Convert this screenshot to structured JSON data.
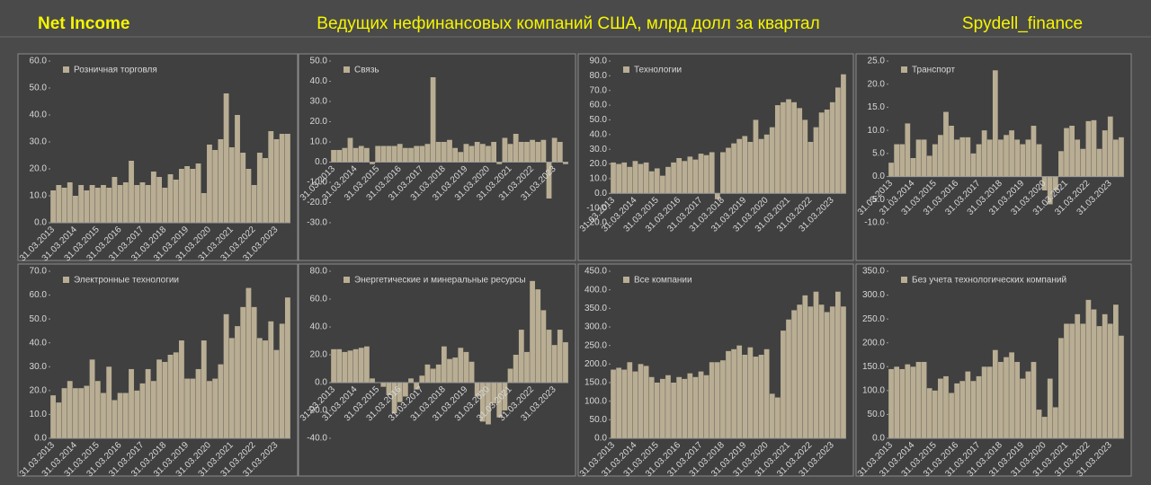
{
  "header": {
    "left": "Net Income",
    "center": "Ведущих нефинансовых компаний США, млрд долл за квартал",
    "right": "Spydell_finance"
  },
  "chart_data": [
    {
      "type": "bar",
      "title": "Розничная торговля",
      "color": "#b9ae94",
      "categories": [
        "31.03.2013",
        null,
        null,
        null,
        "31.03.2014",
        null,
        null,
        null,
        "31.03.2015",
        null,
        null,
        null,
        "31.03.2016",
        null,
        null,
        null,
        "31.03.2017",
        null,
        null,
        null,
        "31.03.2018",
        null,
        null,
        null,
        "31.03.2019",
        null,
        null,
        null,
        "31.03.2020",
        null,
        null,
        null,
        "31.03.2021",
        null,
        null,
        null,
        "31.03.2022",
        null,
        null,
        null,
        "31.03.2023",
        null,
        null
      ],
      "values": [
        12,
        14,
        13,
        15,
        10,
        14,
        12,
        14,
        13,
        14,
        13,
        17,
        14,
        15,
        23,
        14,
        15,
        14,
        19,
        17,
        13,
        18,
        16,
        20,
        21,
        20,
        22,
        11,
        29,
        27,
        31,
        48,
        28,
        40,
        26,
        20,
        14,
        26,
        24,
        34,
        31,
        33,
        33
      ],
      "ylim": [
        0,
        60
      ],
      "yticks": [
        {
          "value": 0,
          "label": "0.0"
        },
        {
          "value": 10,
          "label": "10.0"
        },
        {
          "value": 20,
          "label": "20.0"
        },
        {
          "value": 30,
          "label": "30.0"
        },
        {
          "value": 40,
          "label": "40.0"
        },
        {
          "value": 50,
          "label": "50.0"
        },
        {
          "value": 60,
          "label": "60.0"
        }
      ]
    },
    {
      "type": "bar",
      "title": "Связь",
      "color": "#b9ae94",
      "categories": [
        "31.03.2013",
        null,
        null,
        null,
        "31.03.2014",
        null,
        null,
        null,
        "31.03.2015",
        null,
        null,
        null,
        "31.03.2016",
        null,
        null,
        null,
        "31.03.2017",
        null,
        null,
        null,
        "31.03.2018",
        null,
        null,
        null,
        "31.03.2019",
        null,
        null,
        null,
        "31.03.2020",
        null,
        null,
        null,
        "31.03.2021",
        null,
        null,
        null,
        "31.03.2022",
        null,
        null,
        null,
        "31.03.2023",
        null,
        null
      ],
      "values": [
        6,
        6,
        7,
        12,
        7,
        8,
        7,
        -1,
        8,
        8,
        8,
        8,
        9,
        7,
        7,
        8,
        8,
        9,
        42,
        10,
        10,
        11,
        7,
        5,
        9,
        8,
        10,
        9,
        8,
        10,
        -1,
        12,
        9,
        14,
        10,
        10,
        11,
        10,
        11,
        -18,
        12,
        10,
        -1
      ],
      "ylim": [
        -30,
        50
      ],
      "yticks": [
        {
          "value": -30,
          "label": "-30.0"
        },
        {
          "value": -20,
          "label": "-20.0"
        },
        {
          "value": -10,
          "label": "-10.0"
        },
        {
          "value": 0,
          "label": "0.0"
        },
        {
          "value": 10,
          "label": "10.0"
        },
        {
          "value": 20,
          "label": "20.0"
        },
        {
          "value": 30,
          "label": "30.0"
        },
        {
          "value": 40,
          "label": "40.0"
        },
        {
          "value": 50,
          "label": "50.0"
        }
      ]
    },
    {
      "type": "bar",
      "title": "Технологии",
      "color": "#b9ae94",
      "categories": [
        "31.03.2013",
        null,
        null,
        null,
        "31.03.2014",
        null,
        null,
        null,
        "31.03.2015",
        null,
        null,
        null,
        "31.03.2016",
        null,
        null,
        null,
        "31.03.2017",
        null,
        null,
        null,
        "31.03.2018",
        null,
        null,
        null,
        "31.03.2019",
        null,
        null,
        null,
        "31.03.2020",
        null,
        null,
        null,
        "31.03.2021",
        null,
        null,
        null,
        "31.03.2022",
        null,
        null,
        null,
        "31.03.2023",
        null,
        null
      ],
      "values": [
        21,
        20,
        21,
        18,
        22,
        20,
        21,
        15,
        17,
        12,
        18,
        21,
        24,
        22,
        25,
        23,
        27,
        26,
        28,
        -4,
        28,
        31,
        34,
        37,
        39,
        35,
        50,
        37,
        40,
        45,
        60,
        62,
        64,
        62,
        58,
        50,
        35,
        45,
        55,
        57,
        62,
        72,
        81
      ],
      "ylim": [
        -20,
        90
      ],
      "yticks": [
        {
          "value": -20,
          "label": "-20.0"
        },
        {
          "value": -10,
          "label": "-10.0"
        },
        {
          "value": 0,
          "label": "0.0"
        },
        {
          "value": 10,
          "label": "10.0"
        },
        {
          "value": 20,
          "label": "20.0"
        },
        {
          "value": 30,
          "label": "30.0"
        },
        {
          "value": 40,
          "label": "40.0"
        },
        {
          "value": 50,
          "label": "50.0"
        },
        {
          "value": 60,
          "label": "60.0"
        },
        {
          "value": 70,
          "label": "70.0"
        },
        {
          "value": 80,
          "label": "80.0"
        },
        {
          "value": 90,
          "label": "90.0"
        }
      ]
    },
    {
      "type": "bar",
      "title": "Транспорт",
      "color": "#b9ae94",
      "categories": [
        "31.03.2013",
        null,
        null,
        null,
        "31.03.2014",
        null,
        null,
        null,
        "31.03.2015",
        null,
        null,
        null,
        "31.03.2016",
        null,
        null,
        null,
        "31.03.2017",
        null,
        null,
        null,
        "31.03.2018",
        null,
        null,
        null,
        "31.03.2019",
        null,
        null,
        null,
        "31.03.2020",
        null,
        null,
        null,
        "31.03.2021",
        null,
        null,
        null,
        "31.03.2022",
        null,
        null,
        null,
        "31.03.2023",
        null,
        null
      ],
      "values": [
        3,
        7,
        7,
        11.5,
        4,
        8,
        8,
        4.5,
        7,
        9,
        14,
        11,
        8,
        8.5,
        8.5,
        5,
        7,
        10,
        8,
        23,
        8,
        9,
        10,
        8,
        7,
        8,
        11,
        7,
        -3,
        -6,
        -3,
        5.5,
        10.5,
        11,
        8,
        6,
        12,
        12.2,
        6,
        10,
        13,
        8,
        8.5
      ],
      "ylim": [
        -10,
        25
      ],
      "yticks": [
        {
          "value": -10,
          "label": "-10.0"
        },
        {
          "value": -5,
          "label": "-5.0"
        },
        {
          "value": 0,
          "label": "0.0"
        },
        {
          "value": 5,
          "label": "5.0"
        },
        {
          "value": 10,
          "label": "10.0"
        },
        {
          "value": 15,
          "label": "15.0"
        },
        {
          "value": 20,
          "label": "20.0"
        },
        {
          "value": 25,
          "label": "25.0"
        }
      ]
    },
    {
      "type": "bar",
      "title": "Электронные технологии",
      "color": "#b9ae94",
      "categories": [
        "31.03.2013",
        null,
        null,
        null,
        "31.03.2014",
        null,
        null,
        null,
        "31.03.2015",
        null,
        null,
        null,
        "31.03.2016",
        null,
        null,
        null,
        "31.03.2017",
        null,
        null,
        null,
        "31.03.2018",
        null,
        null,
        null,
        "31.03.2019",
        null,
        null,
        null,
        "31.03.2020",
        null,
        null,
        null,
        "31.03.2021",
        null,
        null,
        null,
        "31.03.2022",
        null,
        null,
        null,
        "31.03.2023",
        null,
        null
      ],
      "values": [
        18,
        15,
        21,
        24,
        21,
        21,
        22,
        33,
        24,
        19,
        30,
        16,
        19,
        19,
        29,
        20,
        23,
        29,
        24,
        33,
        32,
        35,
        36,
        41,
        25,
        25,
        29,
        41,
        24,
        25,
        31,
        52,
        42,
        47,
        55,
        63,
        55,
        42,
        41,
        49,
        37,
        48,
        59
      ],
      "ylim": [
        0,
        70
      ],
      "yticks": [
        {
          "value": 0,
          "label": "0.0"
        },
        {
          "value": 10,
          "label": "10.0"
        },
        {
          "value": 20,
          "label": "20.0"
        },
        {
          "value": 30,
          "label": "30.0"
        },
        {
          "value": 40,
          "label": "40.0"
        },
        {
          "value": 50,
          "label": "50.0"
        },
        {
          "value": 60,
          "label": "60.0"
        },
        {
          "value": 70,
          "label": "70.0"
        }
      ]
    },
    {
      "type": "bar",
      "title": "Энергетические и минеральные ресурсы",
      "color": "#b9ae94",
      "categories": [
        "31.03.2013",
        null,
        null,
        null,
        "31.03.2014",
        null,
        null,
        null,
        "31.03.2015",
        null,
        null,
        null,
        "31.03.2016",
        null,
        null,
        null,
        "31.03.2017",
        null,
        null,
        null,
        "31.03.2018",
        null,
        null,
        null,
        "31.03.2019",
        null,
        null,
        null,
        "31.03.2020",
        null,
        null,
        null,
        "31.03.2021",
        null,
        null,
        null,
        "31.03.2022",
        null,
        null,
        null,
        "31.03.2023",
        null,
        null
      ],
      "values": [
        24,
        24,
        22,
        23,
        24,
        25,
        26,
        3,
        0,
        -3,
        -9,
        -22,
        -14,
        -10,
        3,
        -5,
        5,
        13,
        10,
        13,
        26,
        17,
        18,
        25,
        22,
        15,
        -10,
        -28,
        -30,
        -15,
        -25,
        -20,
        10,
        20,
        38,
        22,
        73,
        67,
        52,
        38,
        27,
        38,
        29
      ],
      "ylim": [
        -40,
        80
      ],
      "yticks": [
        {
          "value": -40,
          "label": "-40.0"
        },
        {
          "value": -20,
          "label": "-20.0"
        },
        {
          "value": 0,
          "label": "0.0"
        },
        {
          "value": 20,
          "label": "20.0"
        },
        {
          "value": 40,
          "label": "40.0"
        },
        {
          "value": 60,
          "label": "60.0"
        },
        {
          "value": 80,
          "label": "80.0"
        }
      ]
    },
    {
      "type": "bar",
      "title": "Все компании",
      "color": "#b9ae94",
      "categories": [
        "31.03.2013",
        null,
        null,
        null,
        "31.03.2014",
        null,
        null,
        null,
        "31.03.2015",
        null,
        null,
        null,
        "31.03.2016",
        null,
        null,
        null,
        "31.03.2017",
        null,
        null,
        null,
        "31.03.2018",
        null,
        null,
        null,
        "31.03.2019",
        null,
        null,
        null,
        "31.03.2020",
        null,
        null,
        null,
        "31.03.2021",
        null,
        null,
        null,
        "31.03.2022",
        null,
        null,
        null,
        "31.03.2023",
        null,
        null
      ],
      "values": [
        185,
        190,
        185,
        205,
        180,
        200,
        195,
        165,
        150,
        160,
        170,
        150,
        165,
        160,
        175,
        165,
        180,
        170,
        205,
        205,
        210,
        235,
        240,
        250,
        225,
        245,
        220,
        225,
        240,
        120,
        110,
        290,
        320,
        345,
        360,
        385,
        355,
        395,
        360,
        340,
        355,
        395,
        355
      ],
      "ylim": [
        0,
        450
      ],
      "yticks": [
        {
          "value": 0,
          "label": "0.0"
        },
        {
          "value": 50,
          "label": "50.0"
        },
        {
          "value": 100,
          "label": "100.0"
        },
        {
          "value": 150,
          "label": "150.0"
        },
        {
          "value": 200,
          "label": "200.0"
        },
        {
          "value": 250,
          "label": "250.0"
        },
        {
          "value": 300,
          "label": "300.0"
        },
        {
          "value": 350,
          "label": "350.0"
        },
        {
          "value": 400,
          "label": "400.0"
        },
        {
          "value": 450,
          "label": "450.0"
        }
      ]
    },
    {
      "type": "bar",
      "title": "Без учета технологических компаний",
      "color": "#b9ae94",
      "categories": [
        "31.03.2013",
        null,
        null,
        null,
        "31.03.2014",
        null,
        null,
        null,
        "31.03.2015",
        null,
        null,
        null,
        "31.03.2016",
        null,
        null,
        null,
        "31.03.2017",
        null,
        null,
        null,
        "31.03.2018",
        null,
        null,
        null,
        "31.03.2019",
        null,
        null,
        null,
        "31.03.2020",
        null,
        null,
        null,
        "31.03.2021",
        null,
        null,
        null,
        "31.03.2022",
        null,
        null,
        null,
        "31.03.2023",
        null,
        null
      ],
      "values": [
        145,
        150,
        145,
        155,
        150,
        160,
        160,
        105,
        100,
        125,
        130,
        95,
        115,
        120,
        140,
        120,
        130,
        150,
        150,
        185,
        160,
        170,
        180,
        160,
        125,
        140,
        160,
        60,
        45,
        125,
        65,
        210,
        240,
        240,
        260,
        240,
        290,
        270,
        235,
        260,
        240,
        280,
        215
      ],
      "ylim": [
        0,
        350
      ],
      "yticks": [
        {
          "value": 0,
          "label": "0.0"
        },
        {
          "value": 50,
          "label": "50.0"
        },
        {
          "value": 100,
          "label": "100.0"
        },
        {
          "value": 150,
          "label": "150.0"
        },
        {
          "value": 200,
          "label": "200.0"
        },
        {
          "value": 250,
          "label": "250.0"
        },
        {
          "value": 300,
          "label": "300.0"
        },
        {
          "value": 350,
          "label": "350.0"
        }
      ]
    }
  ]
}
